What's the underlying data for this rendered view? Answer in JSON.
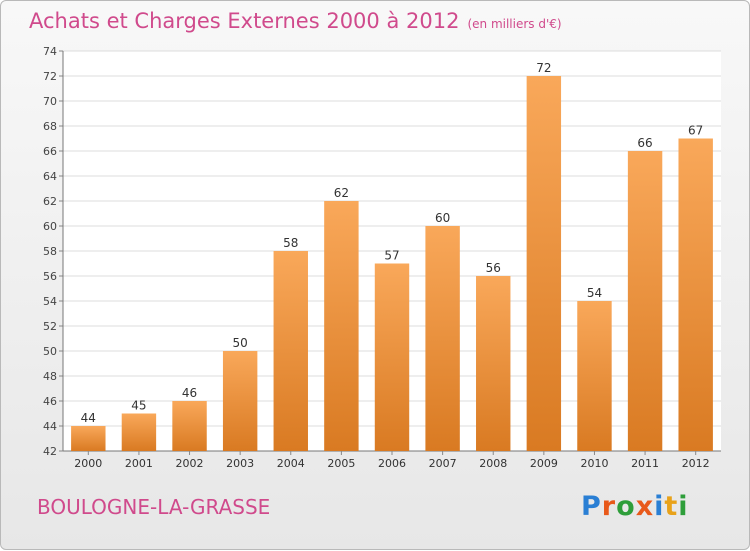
{
  "header": {
    "title": "Achats et Charges Externes 2000 à 2012",
    "subtitle": "(en milliers d'€)"
  },
  "footer": {
    "location": "BOULOGNE-LA-GRASSE",
    "logo_text": "Proxiti",
    "logo_letters": [
      {
        "ch": "P",
        "color": "#2a7fd4"
      },
      {
        "ch": "r",
        "color": "#e8591a"
      },
      {
        "ch": "o",
        "color": "#2e9e3a"
      },
      {
        "ch": "x",
        "color": "#e8591a"
      },
      {
        "ch": "i",
        "color": "#2a7fd4"
      },
      {
        "ch": "t",
        "color": "#e8a21a"
      },
      {
        "ch": "i",
        "color": "#2e9e3a"
      }
    ]
  },
  "colors": {
    "bar_light": "#f9a85a",
    "bar_dark": "#d97a22",
    "grid": "#dcdcdc",
    "title": "#d04a8c"
  },
  "chart_data": {
    "type": "bar",
    "title": "Achats et Charges Externes 2000 à 2012",
    "subtitle": "(en milliers d'€)",
    "xlabel": "",
    "ylabel": "",
    "categories": [
      "2000",
      "2001",
      "2002",
      "2003",
      "2004",
      "2005",
      "2006",
      "2007",
      "2008",
      "2009",
      "2010",
      "2011",
      "2012"
    ],
    "values": [
      44,
      45,
      46,
      50,
      58,
      62,
      57,
      60,
      56,
      72,
      54,
      66,
      67
    ],
    "ylim": [
      42,
      74
    ],
    "ytick_step": 2,
    "grid": true,
    "data_labels": true
  }
}
